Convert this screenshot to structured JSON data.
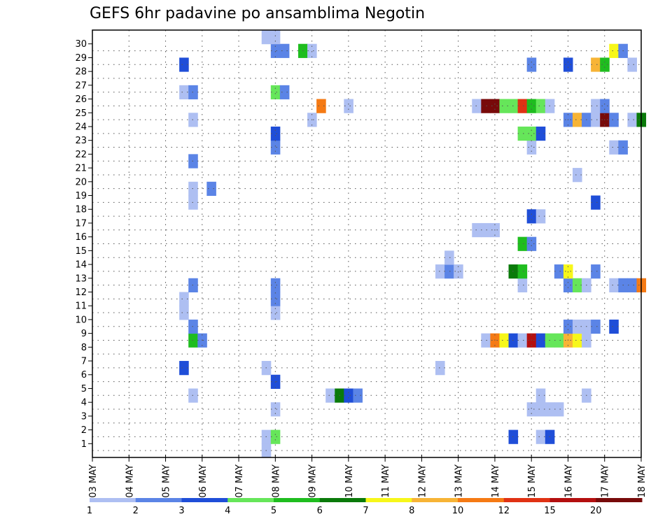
{
  "chart_data": {
    "type": "heatmap",
    "title": "GEFS 6hr padavine po ansamblima Negotin",
    "xlabel": "",
    "ylabel": "",
    "x_ticks": [
      "03 MAY",
      "04 MAY",
      "05 MAY",
      "06 MAY",
      "07 MAY",
      "08 MAY",
      "09 MAY",
      "10 MAY",
      "11 MAY",
      "12 MAY",
      "13 MAY",
      "14 MAY",
      "15 MAY",
      "16 MAY",
      "17 MAY",
      "18 MAY"
    ],
    "y_ticks": [
      "1",
      "2",
      "3",
      "4",
      "5",
      "6",
      "7",
      "8",
      "9",
      "10",
      "11",
      "12",
      "13",
      "14",
      "15",
      "16",
      "17",
      "18",
      "19",
      "20",
      "21",
      "22",
      "23",
      "24",
      "25",
      "26",
      "27",
      "28",
      "29",
      "30"
    ],
    "xlim_days": [
      3,
      18
    ],
    "ylim": [
      0,
      30
    ],
    "grid": true,
    "colorbar": {
      "labels": [
        "1",
        "2",
        "3",
        "4",
        "5",
        "6",
        "7",
        "8",
        "10",
        "12",
        "15",
        "20"
      ],
      "colors": [
        "#aebff2",
        "#5b84e6",
        "#1f4ed8",
        "#66e65a",
        "#1fbd1f",
        "#0a7a0a",
        "#f7f71a",
        "#f7b436",
        "#f57a14",
        "#e03214",
        "#b40f0f",
        "#780a0a"
      ]
    },
    "cells_note": "each cell: [day (3 = 03 MAY 00z), member row, color index into colorbar]",
    "cells": [
      [
        7.75,
        0,
        0
      ],
      [
        7.75,
        1,
        0
      ],
      [
        8.0,
        1,
        3
      ],
      [
        14.5,
        1,
        2
      ],
      [
        15.25,
        1,
        0
      ],
      [
        15.5,
        1,
        2
      ],
      [
        8.0,
        3,
        0
      ],
      [
        15.0,
        3,
        0
      ],
      [
        15.25,
        3,
        0
      ],
      [
        15.5,
        3,
        0
      ],
      [
        15.75,
        3,
        0
      ],
      [
        5.75,
        4,
        0
      ],
      [
        9.5,
        4,
        0
      ],
      [
        9.75,
        4,
        5
      ],
      [
        10.0,
        4,
        2
      ],
      [
        10.25,
        4,
        1
      ],
      [
        15.25,
        4,
        0
      ],
      [
        16.5,
        4,
        0
      ],
      [
        8.0,
        5,
        2
      ],
      [
        5.5,
        6,
        2
      ],
      [
        7.75,
        6,
        0
      ],
      [
        12.5,
        6,
        0
      ],
      [
        5.75,
        8,
        4
      ],
      [
        6.0,
        8,
        1
      ],
      [
        13.75,
        8,
        0
      ],
      [
        14.0,
        8,
        8
      ],
      [
        14.25,
        8,
        6
      ],
      [
        14.5,
        8,
        2
      ],
      [
        14.75,
        8,
        0
      ],
      [
        15.0,
        8,
        10
      ],
      [
        15.25,
        8,
        2
      ],
      [
        15.5,
        8,
        3
      ],
      [
        15.75,
        8,
        3
      ],
      [
        16.0,
        8,
        7
      ],
      [
        16.25,
        8,
        6
      ],
      [
        16.5,
        8,
        0
      ],
      [
        5.75,
        9,
        1
      ],
      [
        16.0,
        9,
        1
      ],
      [
        16.25,
        9,
        0
      ],
      [
        16.5,
        9,
        0
      ],
      [
        16.75,
        9,
        1
      ],
      [
        17.25,
        9,
        2
      ],
      [
        5.5,
        10,
        0
      ],
      [
        8.0,
        10,
        0
      ],
      [
        5.5,
        11,
        0
      ],
      [
        8.0,
        11,
        1
      ],
      [
        5.75,
        12,
        1
      ],
      [
        8.0,
        12,
        1
      ],
      [
        14.75,
        12,
        0
      ],
      [
        16.0,
        12,
        1
      ],
      [
        16.25,
        12,
        3
      ],
      [
        16.5,
        12,
        0
      ],
      [
        17.25,
        12,
        0
      ],
      [
        17.5,
        12,
        1
      ],
      [
        17.75,
        12,
        1
      ],
      [
        18.0,
        12,
        8
      ],
      [
        12.5,
        13,
        0
      ],
      [
        12.75,
        13,
        1
      ],
      [
        13.0,
        13,
        0
      ],
      [
        14.5,
        13,
        5
      ],
      [
        14.75,
        13,
        4
      ],
      [
        15.75,
        13,
        1
      ],
      [
        16.0,
        13,
        6
      ],
      [
        16.75,
        13,
        1
      ],
      [
        12.75,
        14,
        0
      ],
      [
        14.75,
        15,
        4
      ],
      [
        15.0,
        15,
        1
      ],
      [
        13.5,
        16,
        0
      ],
      [
        13.75,
        16,
        0
      ],
      [
        14.0,
        16,
        0
      ],
      [
        15.0,
        17,
        2
      ],
      [
        15.25,
        17,
        0
      ],
      [
        5.75,
        18,
        0
      ],
      [
        16.75,
        18,
        2
      ],
      [
        5.75,
        19,
        0
      ],
      [
        6.25,
        19,
        1
      ],
      [
        16.25,
        20,
        0
      ],
      [
        5.75,
        21,
        1
      ],
      [
        8.0,
        22,
        1
      ],
      [
        15.0,
        22,
        0
      ],
      [
        17.25,
        22,
        0
      ],
      [
        17.5,
        22,
        1
      ],
      [
        8.0,
        23,
        2
      ],
      [
        14.75,
        23,
        3
      ],
      [
        15.0,
        23,
        3
      ],
      [
        15.25,
        23,
        2
      ],
      [
        5.75,
        24,
        0
      ],
      [
        9.0,
        24,
        0
      ],
      [
        16.0,
        24,
        1
      ],
      [
        16.25,
        24,
        7
      ],
      [
        16.5,
        24,
        1
      ],
      [
        16.75,
        24,
        0
      ],
      [
        17.0,
        24,
        11
      ],
      [
        17.25,
        24,
        1
      ],
      [
        17.75,
        24,
        0
      ],
      [
        18.0,
        24,
        5
      ],
      [
        9.25,
        25,
        8
      ],
      [
        10.0,
        25,
        0
      ],
      [
        13.5,
        25,
        0
      ],
      [
        13.75,
        25,
        11
      ],
      [
        14.0,
        25,
        11
      ],
      [
        14.25,
        25,
        3
      ],
      [
        14.5,
        25,
        3
      ],
      [
        14.75,
        25,
        9
      ],
      [
        15.0,
        25,
        4
      ],
      [
        15.25,
        25,
        3
      ],
      [
        15.5,
        25,
        0
      ],
      [
        16.75,
        25,
        0
      ],
      [
        17.0,
        25,
        1
      ],
      [
        5.5,
        26,
        0
      ],
      [
        5.75,
        26,
        1
      ],
      [
        8.0,
        26,
        3
      ],
      [
        8.25,
        26,
        1
      ],
      [
        5.5,
        28,
        2
      ],
      [
        15.0,
        28,
        1
      ],
      [
        16.0,
        28,
        2
      ],
      [
        16.75,
        28,
        7
      ],
      [
        17.0,
        28,
        4
      ],
      [
        17.75,
        28,
        0
      ],
      [
        8.0,
        29,
        1
      ],
      [
        8.25,
        29,
        1
      ],
      [
        8.75,
        29,
        4
      ],
      [
        9.0,
        29,
        0
      ],
      [
        17.25,
        29,
        6
      ],
      [
        17.5,
        29,
        1
      ],
      [
        7.75,
        30,
        0
      ],
      [
        8.0,
        30,
        0
      ]
    ]
  }
}
